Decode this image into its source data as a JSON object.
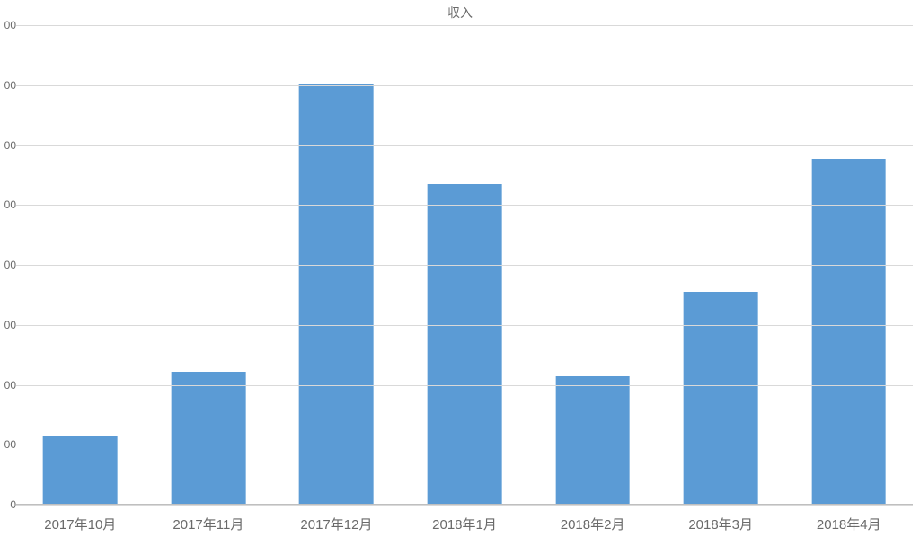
{
  "chart": {
    "type": "bar",
    "title": "収入",
    "title_fontsize": 14,
    "title_color": "#6a6a6a",
    "background_color": "#ffffff",
    "grid_color": "#d9d9d9",
    "axis_color": "#bfbfbf",
    "label_color": "#6a6a6a",
    "xlabel_fontsize": 15,
    "ylabel_fontsize": 12,
    "bar_color": "#5b9bd5",
    "bar_width_ratio": 0.58,
    "y": {
      "min": 0,
      "max": 8,
      "tick_step": 1,
      "tick_suffix": "00",
      "zero_label": "0"
    },
    "categories": [
      "2017年10月",
      "2017年11月",
      "2017年12月",
      "2018年1月",
      "2018年2月",
      "2018年3月",
      "2018年4月"
    ],
    "values": [
      1.15,
      2.22,
      7.03,
      5.35,
      2.15,
      3.55,
      5.77
    ]
  }
}
